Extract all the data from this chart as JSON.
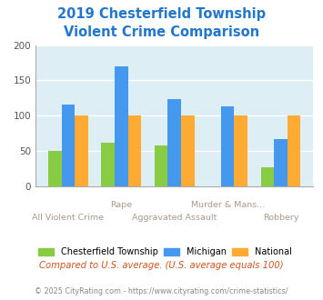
{
  "title_line1": "2019 Chesterfield Township",
  "title_line2": "Violent Crime Comparison",
  "title_color": "#2277cc",
  "x_labels_top": [
    "",
    "Rape",
    "",
    "Murder & Mans...",
    ""
  ],
  "x_labels_bottom": [
    "All Violent Crime",
    "",
    "Aggravated Assault",
    "",
    "Robbery"
  ],
  "chesterfield": [
    50,
    62,
    57,
    0,
    27
  ],
  "michigan": [
    116,
    170,
    123,
    113,
    66
  ],
  "national": [
    100,
    100,
    100,
    100,
    100
  ],
  "chesterfield_color": "#88cc44",
  "michigan_color": "#4499ee",
  "national_color": "#ffaa33",
  "ylim": [
    0,
    200
  ],
  "yticks": [
    0,
    50,
    100,
    150,
    200
  ],
  "plot_bg_color": "#ddeef5",
  "fig_bg_color": "#ffffff",
  "footer_text": "Compared to U.S. average. (U.S. average equals 100)",
  "copyright_text": "© 2025 CityRating.com - https://www.cityrating.com/crime-statistics/",
  "legend_labels": [
    "Chesterfield Township",
    "Michigan",
    "National"
  ],
  "xlabel_color": "#aa9988",
  "bar_width": 0.25
}
